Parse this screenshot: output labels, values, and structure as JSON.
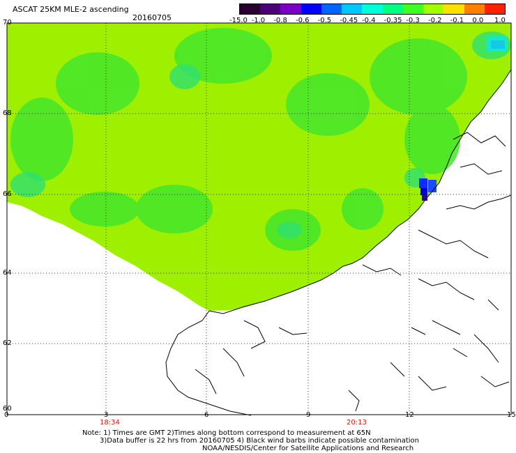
{
  "header": {
    "title": "ASCAT 25KM MLE-2 ascending",
    "date": "20160705"
  },
  "colorbar": {
    "labels": [
      "-15.0",
      "-1.0",
      "-0.8",
      "-0.6",
      "-0.5",
      "-0.45",
      "-0.4",
      "-0.35",
      "-0.3",
      "-0.2",
      "-0.1",
      "0.0",
      "1.0"
    ],
    "colors": [
      "#2a0033",
      "#4b007a",
      "#7a00c8",
      "#0000ff",
      "#0064ff",
      "#00c8ff",
      "#00ffd8",
      "#00ff80",
      "#40ff20",
      "#a0ff00",
      "#ffe000",
      "#ff8000",
      "#ff2000"
    ]
  },
  "map": {
    "lat_labels": [
      "70",
      "68",
      "66",
      "64",
      "62",
      "60"
    ],
    "lon_labels": [
      "0",
      "3",
      "6",
      "9",
      "12",
      "15"
    ],
    "time_labels": [
      "18:34",
      "20:13"
    ],
    "field_color": "#9ff000",
    "time_color": "#cc2200"
  },
  "notes": {
    "line1": "Note: 1) Times are GMT 2)Times along bottom correspond to measurement at 65N",
    "line2": "3)Data buffer is 22 hrs from 20160705 4) Black wind barbs indicate possible contamination",
    "line3": "NOAA/NESDIS/Center for Satellite Applications and Research"
  }
}
